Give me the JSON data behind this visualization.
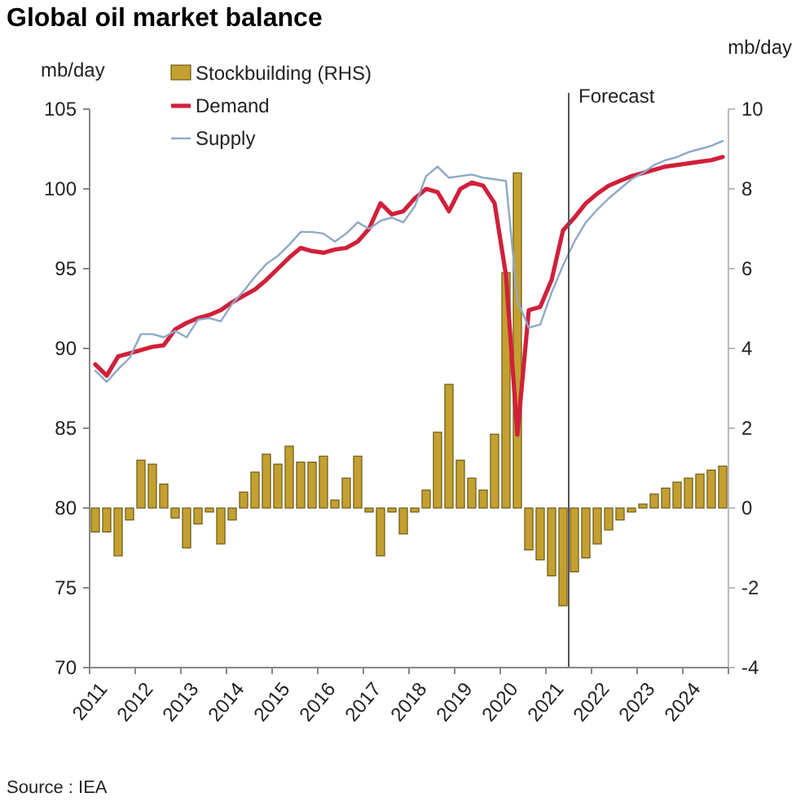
{
  "chart_data": {
    "type": "line",
    "title": "Global oil market balance",
    "ylabel": "mb/day",
    "y2label": "mb/day",
    "x": [
      2011.125,
      2011.375,
      2011.625,
      2011.875,
      2012.125,
      2012.375,
      2012.625,
      2012.875,
      2013.125,
      2013.375,
      2013.625,
      2013.875,
      2014.125,
      2014.375,
      2014.625,
      2014.875,
      2015.125,
      2015.375,
      2015.625,
      2015.875,
      2016.125,
      2016.375,
      2016.625,
      2016.875,
      2017.125,
      2017.375,
      2017.625,
      2017.875,
      2018.125,
      2018.375,
      2018.625,
      2018.875,
      2019.125,
      2019.375,
      2019.625,
      2019.875,
      2020.125,
      2020.375,
      2020.625,
      2020.875,
      2021.125,
      2021.375,
      2021.625,
      2021.875,
      2022.125,
      2022.375,
      2022.625,
      2022.875,
      2023.125,
      2023.375,
      2023.625,
      2023.875,
      2024.125,
      2024.375,
      2024.625,
      2024.875
    ],
    "series": [
      {
        "name": "Stockbuilding (RHS)",
        "type": "bar",
        "axis": "y2",
        "color": "#c4a030",
        "values": [
          -0.6,
          -0.6,
          -1.2,
          -0.3,
          1.2,
          1.1,
          0.6,
          -0.25,
          -1.0,
          -0.4,
          -0.1,
          -0.9,
          -0.3,
          0.4,
          0.9,
          1.35,
          1.1,
          1.55,
          1.15,
          1.15,
          1.3,
          0.2,
          0.75,
          1.3,
          -0.1,
          -1.2,
          -0.1,
          -0.65,
          -0.1,
          0.45,
          1.9,
          3.1,
          1.2,
          0.75,
          0.45,
          1.85,
          5.9,
          8.4,
          -1.05,
          -1.3,
          -1.7,
          -2.45,
          -1.6,
          -1.25,
          -0.9,
          -0.55,
          -0.3,
          -0.1,
          0.1,
          0.35,
          0.5,
          0.65,
          0.75,
          0.85,
          0.95,
          1.05
        ]
      },
      {
        "name": "Demand",
        "color": "#d0203a",
        "values": [
          89.0,
          88.3,
          89.5,
          89.7,
          89.9,
          90.1,
          90.2,
          91.2,
          91.6,
          91.9,
          92.1,
          92.4,
          92.9,
          93.3,
          93.7,
          94.3,
          95.0,
          95.7,
          96.3,
          96.1,
          96.0,
          96.2,
          96.3,
          96.7,
          97.5,
          99.1,
          98.4,
          98.6,
          99.4,
          100.0,
          99.8,
          98.6,
          100.0,
          100.4,
          100.2,
          99.1,
          94.6,
          84.6,
          92.4,
          92.6,
          94.3,
          97.4,
          98.2,
          99.1,
          99.7,
          100.2,
          100.5,
          100.8,
          101.0,
          101.2,
          101.4,
          101.5,
          101.6,
          101.7,
          101.8,
          102.0
        ]
      },
      {
        "name": "Supply",
        "color": "#8fa8c8",
        "values": [
          88.6,
          87.9,
          88.7,
          89.4,
          90.9,
          90.9,
          90.7,
          91.1,
          90.7,
          91.8,
          91.9,
          91.7,
          92.8,
          93.6,
          94.5,
          95.3,
          95.8,
          96.5,
          97.3,
          97.3,
          97.2,
          96.7,
          97.2,
          97.9,
          97.5,
          98.0,
          98.2,
          97.9,
          98.9,
          100.8,
          101.4,
          100.7,
          100.8,
          100.9,
          100.7,
          100.6,
          100.5,
          93.0,
          91.3,
          91.5,
          93.5,
          95.2,
          96.7,
          97.9,
          98.7,
          99.4,
          100.0,
          100.6,
          101.0,
          101.5,
          101.8,
          102.0,
          102.3,
          102.5,
          102.7,
          103.0
        ]
      }
    ],
    "xlim": [
      2011,
      2025
    ],
    "xticks": [
      2011,
      2012,
      2013,
      2014,
      2015,
      2016,
      2017,
      2018,
      2019,
      2020,
      2021,
      2022,
      2023,
      2024,
      {
        "value": 2025,
        "label": null
      }
    ],
    "ylim": [
      70,
      105
    ],
    "yticks": [
      70,
      75,
      80,
      85,
      90,
      95,
      100,
      105
    ],
    "y2lim": [
      -4,
      10
    ],
    "y2ticks": [
      -4,
      -2,
      0,
      2,
      4,
      6,
      8,
      10
    ],
    "ref_lines": [
      {
        "axis": "x",
        "value": 2021.5,
        "label": "Forecast",
        "color": "#555555"
      }
    ],
    "legend": "top left",
    "grid": false,
    "annotations": [
      "Source : IEA"
    ]
  }
}
